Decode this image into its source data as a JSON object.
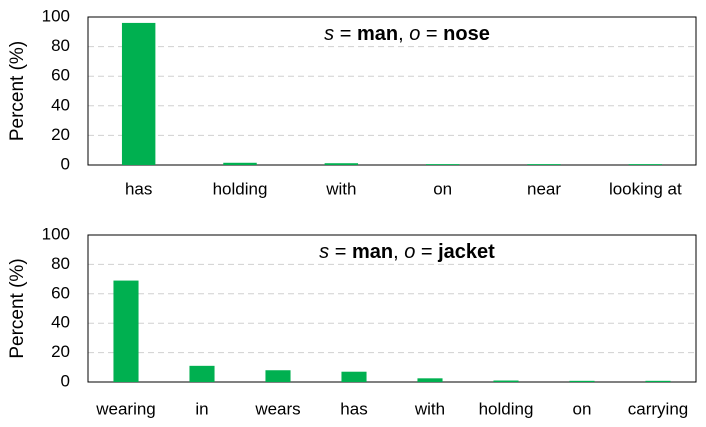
{
  "chart_data": [
    {
      "type": "bar",
      "title": [
        {
          "text": "s",
          "style": "italic"
        },
        {
          "text": " = ",
          "style": "normal"
        },
        {
          "text": "man",
          "style": "bold"
        },
        {
          "text": ", ",
          "style": "normal"
        },
        {
          "text": "o",
          "style": "italic"
        },
        {
          "text": " = ",
          "style": "normal"
        },
        {
          "text": "nose",
          "style": "bold"
        }
      ],
      "y_label": "Percent (%)",
      "categories": [
        "has",
        "holding",
        "with",
        "on",
        "near",
        "looking at"
      ],
      "values": [
        96,
        1.5,
        1.2,
        0.6,
        0.6,
        0.6
      ],
      "color": "#00b050",
      "ylim": [
        0,
        100
      ],
      "yticks": [
        0,
        20,
        40,
        60,
        80,
        100
      ],
      "grid": true
    },
    {
      "type": "bar",
      "title": [
        {
          "text": "s",
          "style": "italic"
        },
        {
          "text": " = ",
          "style": "normal"
        },
        {
          "text": "man",
          "style": "bold"
        },
        {
          "text": ", ",
          "style": "normal"
        },
        {
          "text": "o",
          "style": "italic"
        },
        {
          "text": " = ",
          "style": "normal"
        },
        {
          "text": "jacket",
          "style": "bold"
        }
      ],
      "y_label": "Percent (%)",
      "categories": [
        "wearing",
        "in",
        "wears",
        "has",
        "with",
        "holding",
        "on",
        "carrying"
      ],
      "values": [
        69,
        11,
        8,
        7,
        2.5,
        1,
        0.8,
        0.8
      ],
      "color": "#00b050",
      "ylim": [
        0,
        100
      ],
      "yticks": [
        0,
        20,
        40,
        60,
        80,
        100
      ],
      "grid": true
    }
  ]
}
